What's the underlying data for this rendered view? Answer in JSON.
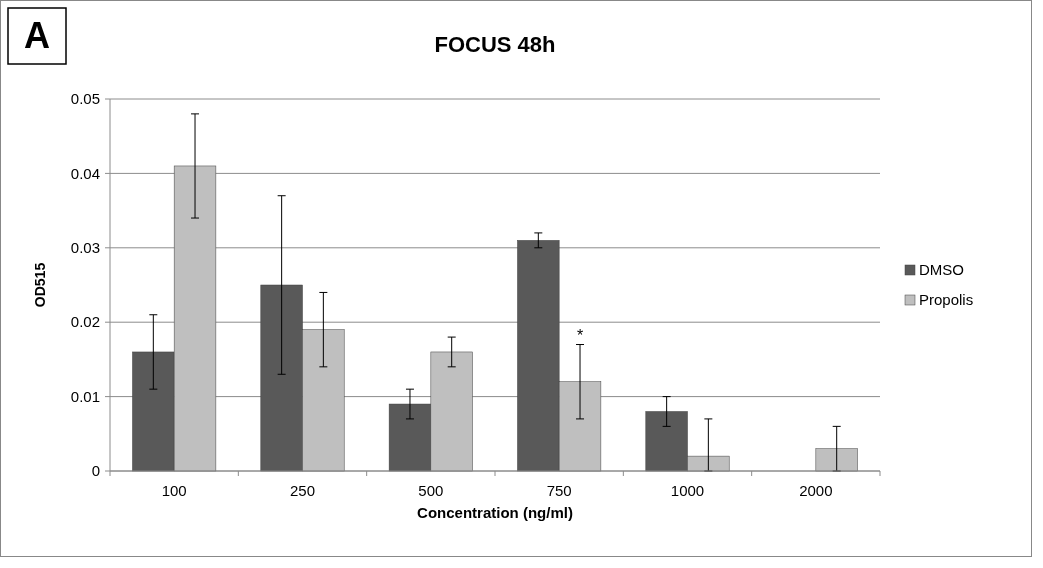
{
  "chart_data": {
    "type": "bar",
    "title": "FOCUS 48h",
    "xlabel": "Concentration (ng/ml)",
    "ylabel": "OD515",
    "categories": [
      "100",
      "250",
      "500",
      "750",
      "1000",
      "2000"
    ],
    "series": [
      {
        "name": "DMSO",
        "color": "#595959",
        "values": [
          0.016,
          0.025,
          0.009,
          0.031,
          0.008,
          0
        ],
        "errors": [
          0.005,
          0.012,
          0.002,
          0.001,
          0.002,
          null
        ]
      },
      {
        "name": "Propolis",
        "color": "#bfbfbf",
        "values": [
          0.041,
          0.019,
          0.016,
          0.012,
          0.002,
          0.003
        ],
        "errors": [
          0.007,
          0.005,
          0.002,
          0.005,
          [
            0,
            0.007
          ],
          [
            0,
            0.006
          ]
        ]
      }
    ],
    "ylim": [
      0,
      0.05
    ],
    "yticks": [
      0,
      0.01,
      0.02,
      0.03,
      0.04,
      0.05
    ],
    "grid": "y",
    "legend": "right",
    "annotations": [
      "A",
      {
        "text": "*",
        "x": "750",
        "y": 0.0175
      }
    ]
  }
}
